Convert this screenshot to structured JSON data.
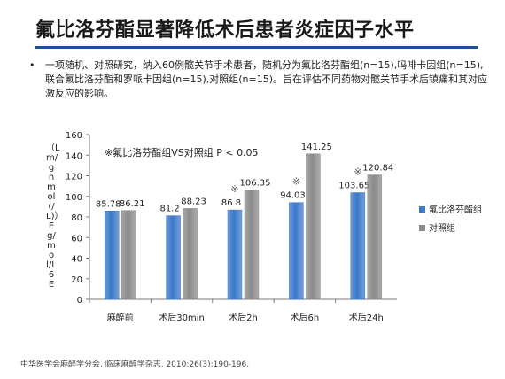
{
  "slide": {
    "title": "氟比洛芬酯显著降低术后患者炎症因子水平",
    "bullet": "一项随机、对照研究，纳入60例髋关节手术患者，随机分为氟比洛芬酯组(n=15),吗啡卡因组(n=15),联合氟比洛芬酯和罗哌卡因组(n=15),对照组(n=15)。旨在评估不同药物对髋关节手术后镇痛和其对应激反应的影响。",
    "bullet_symbol": "•",
    "source": "中华医学会麻醉学分会. 临床麻醉学杂志. 2010;26(3):190-196."
  },
  "chart_data": {
    "type": "bar",
    "categories": [
      "麻醉前",
      "术后30min",
      "术后2h",
      "术后6h",
      "术后24h"
    ],
    "series": [
      {
        "name": "氟比洛芬酯组",
        "values": [
          85.78,
          81.2,
          86.8,
          94.03,
          103.65
        ],
        "color": "#3a78c9"
      },
      {
        "name": "对照组",
        "values": [
          86.21,
          88.23,
          106.35,
          141.25,
          120.84
        ],
        "color": "#8a8a8a"
      }
    ],
    "value_labels": [
      [
        "85.78",
        "81.2",
        "86.8",
        "94.03",
        "103.65"
      ],
      [
        "86.21",
        "88.23",
        "106.35",
        "141.25",
        "120.84"
      ]
    ],
    "significance_mark": "※",
    "significant_categories": [
      2,
      3,
      4
    ],
    "annotation": "※氟比洛芬酯组VS对照组 P < 0.05",
    "ylabel": "（Lm/gnmol(/L)）Eg/mol/L6E",
    "ylim": [
      0,
      160
    ],
    "yticks": [
      0,
      20,
      40,
      60,
      80,
      100,
      120,
      140,
      160
    ],
    "grid": false,
    "legend_position": "right"
  }
}
